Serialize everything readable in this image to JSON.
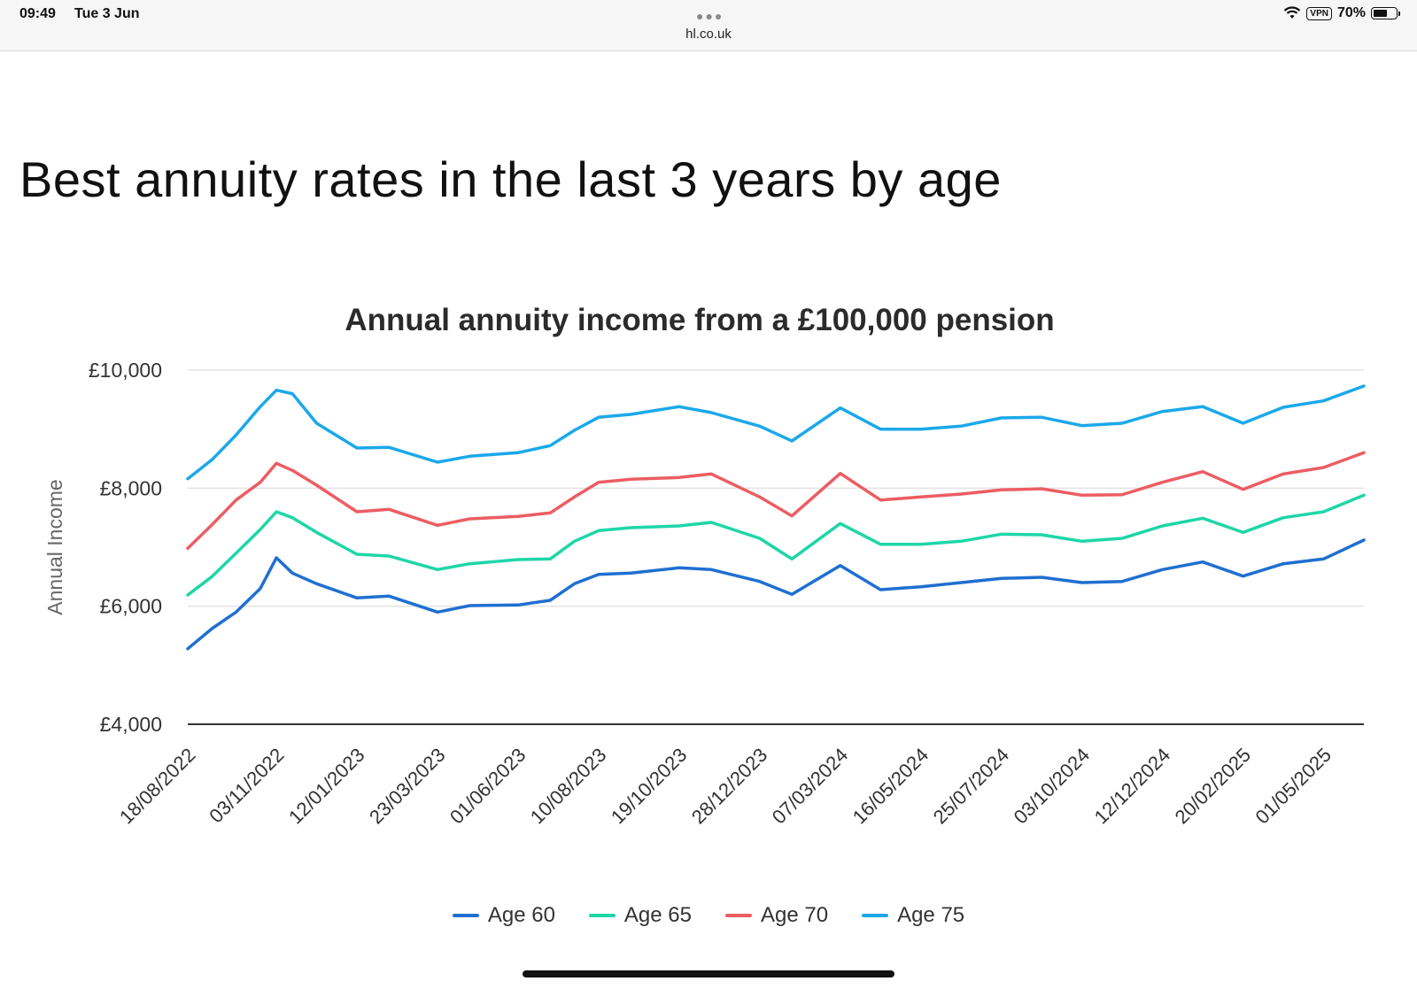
{
  "status_bar": {
    "time": "09:49",
    "date": "Tue 3 Jun",
    "url": "hl.co.uk",
    "vpn": "VPN",
    "battery": "70%",
    "battery_level": 0.7
  },
  "page": {
    "title": "Best annuity rates in the last 3 years by age"
  },
  "colors": {
    "Age 60": "#1f6fd1",
    "Age 65": "#1ed6a8",
    "Age 70": "#ec5d63",
    "Age 75": "#1ba8ea"
  },
  "chart_data": {
    "type": "line",
    "title": "Annual annuity income from a £100,000 pension",
    "xlabel": "",
    "ylabel": "Annual Income",
    "ylim": [
      4000,
      10000
    ],
    "y_ticks": [
      "£10,000",
      "£8,000",
      "£6,000",
      "£4,000"
    ],
    "y_tick_values": [
      10000,
      8000,
      6000,
      4000
    ],
    "x_ticks": [
      "18/08/2022",
      "03/11/2022",
      "12/01/2023",
      "23/03/2023",
      "01/06/2023",
      "10/08/2023",
      "19/10/2023",
      "28/12/2023",
      "07/03/2024",
      "16/05/2024",
      "25/07/2024",
      "03/10/2024",
      "12/12/2024",
      "20/02/2025",
      "01/05/2025"
    ],
    "grid": true,
    "legend_position": "bottom",
    "x": [
      "18/08/2022",
      "08/09/2022",
      "29/09/2022",
      "20/10/2022",
      "03/11/2022",
      "17/11/2022",
      "08/12/2022",
      "12/01/2023",
      "09/02/2023",
      "23/03/2023",
      "20/04/2023",
      "01/06/2023",
      "29/06/2023",
      "20/07/2023",
      "10/08/2023",
      "07/09/2023",
      "19/10/2023",
      "16/11/2023",
      "28/12/2023",
      "25/01/2024",
      "07/03/2024",
      "11/04/2024",
      "16/05/2024",
      "20/06/2024",
      "25/07/2024",
      "29/08/2024",
      "03/10/2024",
      "07/11/2024",
      "12/12/2024",
      "16/01/2025",
      "20/02/2025",
      "27/03/2025",
      "01/05/2025",
      "05/06/2025"
    ],
    "series": [
      {
        "name": "Age 60",
        "values": [
          5280,
          5620,
          5900,
          6300,
          6820,
          6560,
          6380,
          6140,
          6170,
          5900,
          6010,
          6020,
          6100,
          6380,
          6540,
          6560,
          6650,
          6620,
          6420,
          6200,
          6690,
          6280,
          6330,
          6400,
          6470,
          6490,
          6400,
          6420,
          6620,
          6750,
          6510,
          6720,
          6800,
          7120
        ]
      },
      {
        "name": "Age 65",
        "values": [
          6190,
          6500,
          6900,
          7300,
          7600,
          7500,
          7250,
          6880,
          6850,
          6620,
          6720,
          6790,
          6800,
          7100,
          7280,
          7330,
          7360,
          7420,
          7150,
          6800,
          7400,
          7050,
          7050,
          7100,
          7220,
          7210,
          7100,
          7150,
          7360,
          7490,
          7250,
          7500,
          7600,
          7880
        ]
      },
      {
        "name": "Age 70",
        "values": [
          6980,
          7380,
          7800,
          8100,
          8420,
          8300,
          8050,
          7600,
          7640,
          7370,
          7480,
          7520,
          7580,
          7850,
          8100,
          8150,
          8180,
          8240,
          7850,
          7530,
          8250,
          7800,
          7850,
          7900,
          7970,
          7990,
          7880,
          7890,
          8100,
          8280,
          7980,
          8240,
          8350,
          8600
        ]
      },
      {
        "name": "Age 75",
        "values": [
          8160,
          8480,
          8900,
          9380,
          9660,
          9600,
          9100,
          8680,
          8690,
          8440,
          8540,
          8600,
          8720,
          8980,
          9200,
          9250,
          9380,
          9280,
          9050,
          8800,
          9360,
          9000,
          9000,
          9050,
          9190,
          9200,
          9060,
          9100,
          9300,
          9380,
          9100,
          9370,
          9480,
          9730
        ]
      }
    ]
  }
}
